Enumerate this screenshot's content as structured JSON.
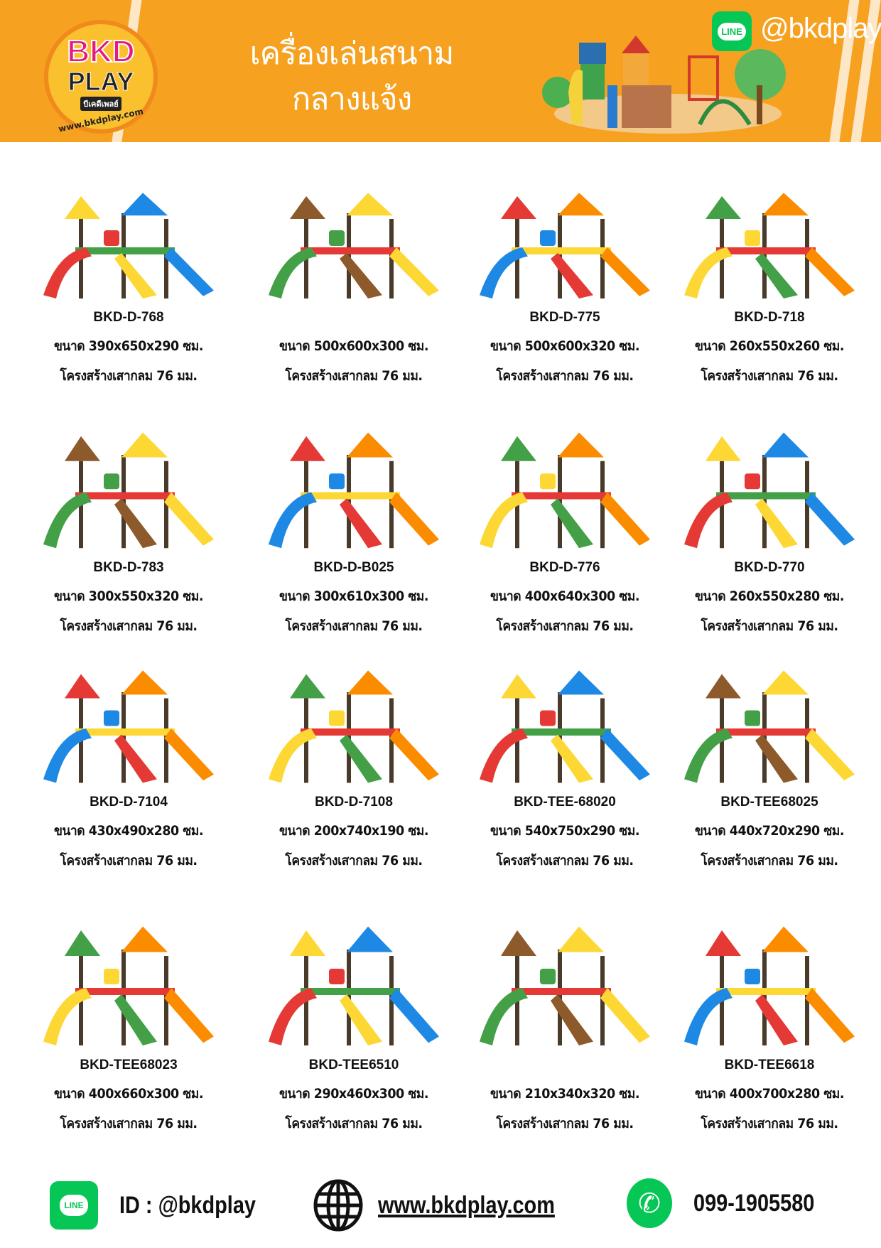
{
  "header": {
    "logo_text": "BKD PLAY",
    "logo_thai": "บีเคดีเพลย์",
    "logo_url": "www.bkdplay.com",
    "title_line1": "เครื่องเล่นสนาม",
    "title_line2": "กลางแจ้ง",
    "line_label": "LINE",
    "line_handle": "@bkdplay",
    "accent_color": "#f6a11f"
  },
  "products": [
    {
      "name": "BKD-D-768",
      "size": "ขนาด 390x650x290 ซม.",
      "structure": "โครงสร้างเสากลม 76 มม."
    },
    {
      "name": "",
      "size": "ขนาด 500x600x300 ซม.",
      "structure": "โครงสร้างเสากลม 76 มม."
    },
    {
      "name": "BKD-D-775",
      "size": "ขนาด 500x600x320 ซม.",
      "structure": "โครงสร้างเสากลม 76 มม."
    },
    {
      "name": "BKD-D-718",
      "size": "ขนาด 260x550x260 ซม.",
      "structure": "โครงสร้างเสากลม 76 มม."
    },
    {
      "name": "BKD-D-783",
      "size": "ขนาด 300x550x320 ซม.",
      "structure": "โครงสร้างเสากลม 76 มม."
    },
    {
      "name": "BKD-D-B025",
      "size": "ขนาด 300x610x300 ซม.",
      "structure": "โครงสร้างเสากลม 76 มม."
    },
    {
      "name": "BKD-D-776",
      "size": "ขนาด 400x640x300 ซม.",
      "structure": "โครงสร้างเสากลม 76 มม."
    },
    {
      "name": "BKD-D-770",
      "size": "ขนาด 260x550x280 ซม.",
      "structure": "โครงสร้างเสากลม 76 มม."
    },
    {
      "name": "BKD-D-7104",
      "size": "ขนาด 430x490x280 ซม.",
      "structure": "โครงสร้างเสากลม 76 มม."
    },
    {
      "name": "BKD-D-7108",
      "size": "ขนาด 200x740x190 ซม.",
      "structure": "โครงสร้างเสากลม 76 มม."
    },
    {
      "name": "BKD-TEE-68020",
      "size": "ขนาด 540x750x290 ซม.",
      "structure": "โครงสร้างเสากลม 76 มม."
    },
    {
      "name": "BKD-TEE68025",
      "size": "ขนาด 440x720x290 ซม.",
      "structure": "โครงสร้างเสากลม 76 มม."
    },
    {
      "name": "BKD-TEE68023",
      "size": "ขนาด 400x660x300 ซม.",
      "structure": "โครงสร้างเสากลม 76 มม."
    },
    {
      "name": "BKD-TEE6510",
      "size": "ขนาด 290x460x300 ซม.",
      "structure": "โครงสร้างเสากลม 76 มม."
    },
    {
      "name": "",
      "size": "ขนาด 210x340x320 ซม.",
      "structure": "โครงสร้างเสากลม 76 มม."
    },
    {
      "name": "BKD-TEE6618",
      "size": "ขนาด 400x700x280 ซม.",
      "structure": "โครงสร้างเสากลม 76 มม."
    }
  ],
  "footer": {
    "line_label": "LINE",
    "line_id": "ID : @bkdplay",
    "website": "www.bkdplay.com",
    "phone": "099-1905580",
    "icons": [
      "line-icon",
      "globe-icon",
      "phone-icon"
    ]
  }
}
